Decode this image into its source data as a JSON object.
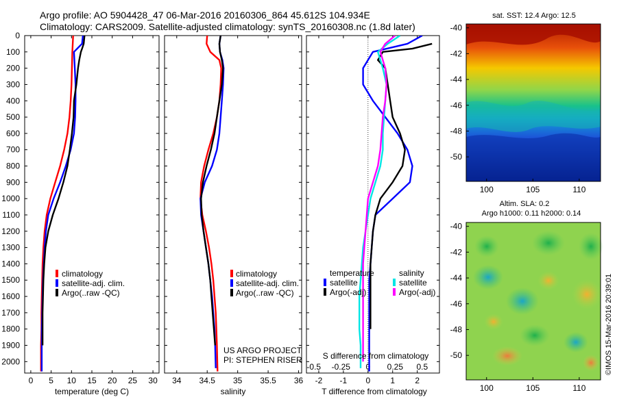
{
  "header": {
    "line1": "Argo profile: AO 5904428_47 06-Mar-2016 20160306_864 45.612S 104.934E",
    "line2": "Climatology: CARS2009. Satellite-adjusted climatology: synTS_20160308.nc (1.8d later)"
  },
  "colors": {
    "climatology": "#ff0000",
    "satellite": "#0000ff",
    "argo": "#000000",
    "cyan": "#00e5e5",
    "magenta": "#ff00ff"
  },
  "depth_ticks": [
    "0",
    "100",
    "200",
    "300",
    "400",
    "500",
    "600",
    "700",
    "800",
    "900",
    "1000",
    "1100",
    "1200",
    "1300",
    "1400",
    "1500",
    "1600",
    "1700",
    "1800",
    "1900",
    "2000"
  ],
  "chart_data": [
    {
      "type": "line",
      "xlabel": "temperature (deg C)",
      "xticks": [
        "0",
        "5",
        "10",
        "15",
        "20",
        "25",
        "30"
      ],
      "xlim": [
        -1.5,
        31.5
      ],
      "ylim": [
        2070,
        0
      ],
      "legend": [
        "climatology",
        "satellite-adj. clim.",
        "Argo(..raw -QC)"
      ],
      "series": [
        {
          "name": "climatology",
          "color": "climatology",
          "x": [
            10.4,
            10.3,
            10.2,
            10.1,
            10.0,
            9.8,
            9.5,
            9.0,
            8.2,
            7.2,
            6.0,
            4.8,
            3.9,
            3.4,
            3.1,
            2.9,
            2.8,
            2.7,
            2.6,
            2.6,
            2.5,
            2.5
          ],
          "y": [
            0,
            50,
            100,
            200,
            300,
            400,
            500,
            600,
            700,
            800,
            900,
            1000,
            1100,
            1200,
            1300,
            1400,
            1500,
            1600,
            1700,
            1800,
            1900,
            2060
          ]
        },
        {
          "name": "satellite-adj. clim.",
          "color": "satellite",
          "x": [
            12.8,
            12.6,
            10.6,
            10.8,
            11.0,
            11.0,
            10.9,
            10.6,
            9.8,
            8.6,
            7.2,
            5.6,
            4.3,
            3.7,
            3.4,
            3.2,
            3.0,
            2.9,
            2.8,
            2.7,
            2.7,
            2.7
          ],
          "y": [
            0,
            50,
            100,
            200,
            300,
            400,
            500,
            600,
            700,
            800,
            900,
            1000,
            1100,
            1200,
            1300,
            1400,
            1500,
            1600,
            1700,
            1800,
            1900,
            2060
          ]
        },
        {
          "name": "Argo(..raw -QC)",
          "color": "argo",
          "x": [
            13.2,
            13.0,
            12.6,
            12.3,
            11.9,
            11.6,
            11.2,
            10.6,
            10.5,
            10.1,
            9.6,
            9.0,
            8.0,
            6.8,
            5.4,
            4.3,
            3.6,
            3.3,
            3.1,
            3.0,
            2.9,
            2.9,
            2.9
          ],
          "y": [
            0,
            50,
            80,
            100,
            150,
            200,
            300,
            400,
            500,
            600,
            700,
            800,
            900,
            1000,
            1100,
            1200,
            1300,
            1400,
            1500,
            1600,
            1700,
            1800,
            1900
          ]
        }
      ]
    },
    {
      "type": "line",
      "xlabel": "salinity",
      "xticks": [
        "34",
        "34.5",
        "35",
        "35.5",
        "36"
      ],
      "xlim": [
        33.8,
        36.05
      ],
      "ylim": [
        2070,
        0
      ],
      "legend": [
        "climatology",
        "satellite-adj. clim.",
        "Argo(..raw -QC)"
      ],
      "annotation": [
        "US ARGO PROJECT",
        "PI: STEPHEN RISER"
      ],
      "series": [
        {
          "name": "climatology",
          "color": "climatology",
          "x": [
            34.5,
            34.49,
            34.55,
            34.7,
            34.73,
            34.72,
            34.7,
            34.66,
            34.6,
            34.52,
            34.45,
            34.4,
            34.39,
            34.42,
            34.48,
            34.53,
            34.57,
            34.6,
            34.62,
            34.64,
            34.65,
            34.66,
            34.67
          ],
          "y": [
            0,
            50,
            100,
            150,
            200,
            300,
            400,
            500,
            600,
            700,
            800,
            900,
            1000,
            1100,
            1200,
            1300,
            1400,
            1500,
            1600,
            1700,
            1800,
            1900,
            2060
          ]
        },
        {
          "name": "satellite-adj. clim.",
          "color": "satellite",
          "x": [
            34.72,
            34.7,
            34.71,
            34.75,
            34.77,
            34.76,
            34.74,
            34.72,
            34.7,
            34.66,
            34.58,
            34.46,
            34.39,
            34.4,
            34.44,
            34.48,
            34.52,
            34.55,
            34.58,
            34.6,
            34.62,
            34.63,
            34.64
          ],
          "y": [
            0,
            50,
            100,
            150,
            200,
            300,
            400,
            500,
            600,
            700,
            800,
            900,
            1000,
            1100,
            1200,
            1300,
            1400,
            1500,
            1600,
            1700,
            1800,
            1900,
            2040
          ]
        },
        {
          "name": "Argo(..raw -QC)",
          "color": "argo",
          "x": [
            34.72,
            34.7,
            34.71,
            34.74,
            34.76,
            34.74,
            34.7,
            34.66,
            34.62,
            34.56,
            34.49,
            34.43,
            34.4,
            34.41,
            34.44,
            34.48,
            34.52,
            34.55,
            34.57,
            34.59,
            34.61,
            34.63
          ],
          "y": [
            0,
            50,
            100,
            150,
            200,
            300,
            400,
            500,
            600,
            700,
            800,
            900,
            1000,
            1100,
            1200,
            1300,
            1400,
            1500,
            1600,
            1700,
            1800,
            1900
          ]
        }
      ]
    },
    {
      "type": "line",
      "xlabel": "T difference from climatology",
      "xlabel_top": "S difference from climatology",
      "xticks": [
        "-2",
        "-1",
        "0",
        "1",
        "2"
      ],
      "xticks_top": [
        "-0.5",
        "-0.25",
        "0",
        "0.25",
        "0.5"
      ],
      "xlim": [
        -2.5,
        2.9
      ],
      "ylim": [
        2070,
        0
      ],
      "legend_titles": [
        "temperature",
        "salinity"
      ],
      "legend": [
        "satellite",
        "Argo(-adj)",
        "satellite",
        "Argo(-adj)"
      ],
      "series": [
        {
          "name": "temperature satellite",
          "color": "satellite",
          "x": [
            2.2,
            1.6,
            0.2,
            -0.2,
            -0.2,
            0.2,
            0.7,
            1.2,
            1.6,
            1.8,
            1.7,
            1.0,
            0.3,
            0.2,
            0.15,
            0.1,
            0.05,
            0.05,
            0.05,
            0.05,
            0.05,
            0.05
          ],
          "y": [
            0,
            50,
            100,
            200,
            300,
            400,
            500,
            600,
            700,
            800,
            900,
            1000,
            1100,
            1200,
            1300,
            1400,
            1500,
            1600,
            1700,
            1800,
            1900,
            2060
          ]
        },
        {
          "name": "temperature Argo(-adj)",
          "color": "argo",
          "x": [
            2.6,
            1.8,
            0.6,
            0.4,
            0.7,
            0.8,
            0.9,
            1.0,
            1.3,
            1.5,
            1.4,
            1.0,
            0.5,
            0.3,
            0.2,
            0.15,
            0.1,
            0.1,
            0.1,
            0.1,
            0.1
          ],
          "y": [
            50,
            80,
            100,
            150,
            200,
            300,
            400,
            500,
            600,
            700,
            800,
            900,
            1000,
            1100,
            1200,
            1300,
            1400,
            1500,
            1600,
            1700,
            1800
          ]
        },
        {
          "name": "salinity satellite",
          "color": "cyan",
          "x": [
            1.3,
            0.8,
            0.4,
            0.6,
            0.75,
            0.7,
            0.65,
            0.6,
            0.6,
            0.5,
            0.3,
            0.1,
            0.0,
            -0.1,
            -0.2,
            -0.25,
            -0.3,
            -0.35,
            -0.35,
            -0.35,
            -0.3,
            -0.3
          ],
          "y": [
            0,
            50,
            100,
            200,
            300,
            400,
            500,
            600,
            700,
            800,
            900,
            1000,
            1100,
            1200,
            1300,
            1400,
            1500,
            1600,
            1700,
            1800,
            1900,
            2040
          ]
        },
        {
          "name": "salinity Argo(-adj)",
          "color": "magenta",
          "x": [
            1.1,
            0.7,
            0.5,
            0.7,
            0.75,
            0.7,
            0.6,
            0.55,
            0.5,
            0.4,
            0.2,
            0.0,
            -0.05,
            -0.1,
            -0.15,
            -0.2,
            -0.2,
            -0.2,
            -0.2,
            -0.2,
            -0.2,
            -0.2
          ],
          "y": [
            0,
            50,
            100,
            200,
            300,
            400,
            500,
            600,
            700,
            800,
            900,
            1000,
            1100,
            1200,
            1300,
            1400,
            1500,
            1600,
            1700,
            1800,
            1900,
            2000
          ]
        }
      ]
    },
    {
      "type": "heatmap",
      "title": "sat. SST: 12.4 Argo: 12.5",
      "xticks": [
        "100",
        "105",
        "110"
      ],
      "yticks": [
        "-40",
        "-42",
        "-44",
        "-46",
        "-48",
        "-50"
      ],
      "xlim": [
        97.8,
        112.3
      ],
      "ylim": [
        -51.9,
        -39.7
      ]
    },
    {
      "type": "heatmap",
      "title_lines": [
        "Altim. SLA: 0.2",
        "Argo h1000: 0.11 h2000: 0.14"
      ],
      "xticks": [
        "100",
        "105",
        "110"
      ],
      "yticks": [
        "-40",
        "-42",
        "-44",
        "-46",
        "-48",
        "-50"
      ],
      "xlim": [
        97.8,
        112.3
      ],
      "ylim": [
        -51.9,
        -39.7
      ]
    }
  ],
  "footer_stamp": "©IMOS 15-Mar-2016 20:39:01"
}
